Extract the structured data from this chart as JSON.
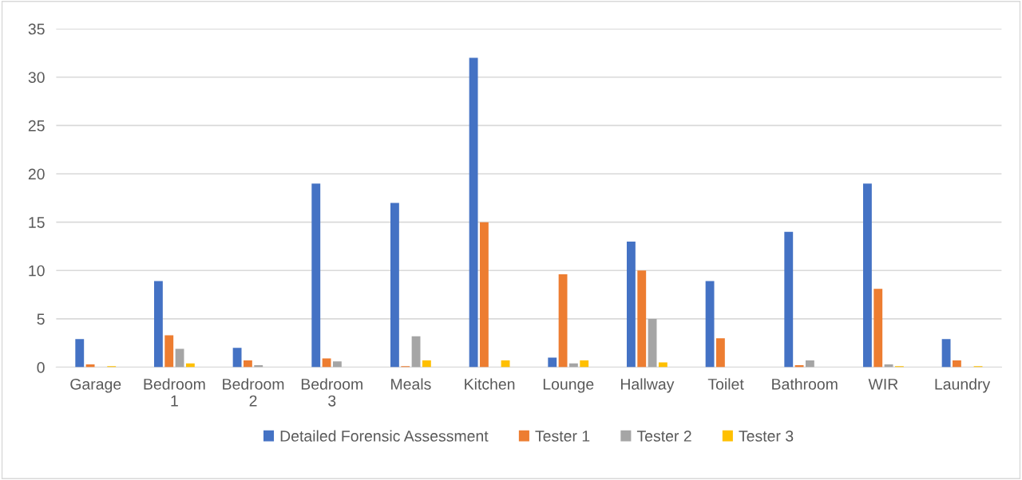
{
  "chart_data": {
    "type": "bar",
    "categories": [
      "Garage",
      "Bedroom 1",
      "Bedroom 2",
      "Bedroom 3",
      "Meals",
      "Kitchen",
      "Lounge",
      "Hallway",
      "Toilet",
      "Bathroom",
      "WIR",
      "Laundry"
    ],
    "series": [
      {
        "name": "Detailed Forensic Assessment",
        "color": "#4472c4",
        "values": [
          2.9,
          8.9,
          2.0,
          19,
          17,
          32,
          1.0,
          13,
          8.9,
          14,
          19,
          2.9
        ]
      },
      {
        "name": "Tester 1",
        "color": "#ed7d31",
        "values": [
          0.3,
          3.3,
          0.7,
          0.9,
          0.1,
          15,
          9.6,
          10,
          3,
          0.2,
          8.1,
          0.7
        ]
      },
      {
        "name": "Tester 2",
        "color": "#a5a5a5",
        "values": [
          0,
          1.9,
          0.2,
          0.6,
          3.2,
          0,
          0.4,
          5,
          0,
          0.7,
          0.3,
          0
        ]
      },
      {
        "name": "Tester 3",
        "color": "#ffc000",
        "values": [
          0.1,
          0.4,
          0,
          0,
          0.7,
          0.7,
          0.7,
          0.5,
          0,
          0,
          0.1,
          0.1
        ]
      }
    ],
    "ylim": [
      0,
      35
    ],
    "yticks": [
      0,
      5,
      10,
      15,
      20,
      25,
      30,
      35
    ],
    "grid": "y",
    "legend": "bottom"
  }
}
